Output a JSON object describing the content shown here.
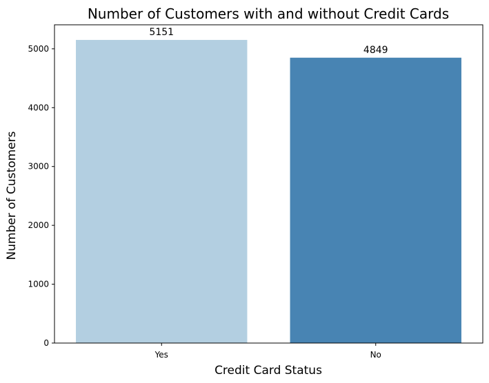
{
  "chart_data": {
    "type": "bar",
    "title": "Number of Customers with and without Credit Cards",
    "xlabel": "Credit Card Status",
    "ylabel": "Number of Customers",
    "categories": [
      "Yes",
      "No"
    ],
    "values": [
      5151,
      4849
    ],
    "data_labels": [
      "5151",
      "4849"
    ],
    "colors": [
      "#b3cfe1",
      "#4884b3"
    ],
    "ylim": [
      0,
      5408
    ],
    "yticks": [
      0,
      1000,
      2000,
      3000,
      4000,
      5000
    ],
    "ytick_labels": [
      "0",
      "1000",
      "2000",
      "3000",
      "4000",
      "5000"
    ],
    "grid": false,
    "legend": "none"
  }
}
